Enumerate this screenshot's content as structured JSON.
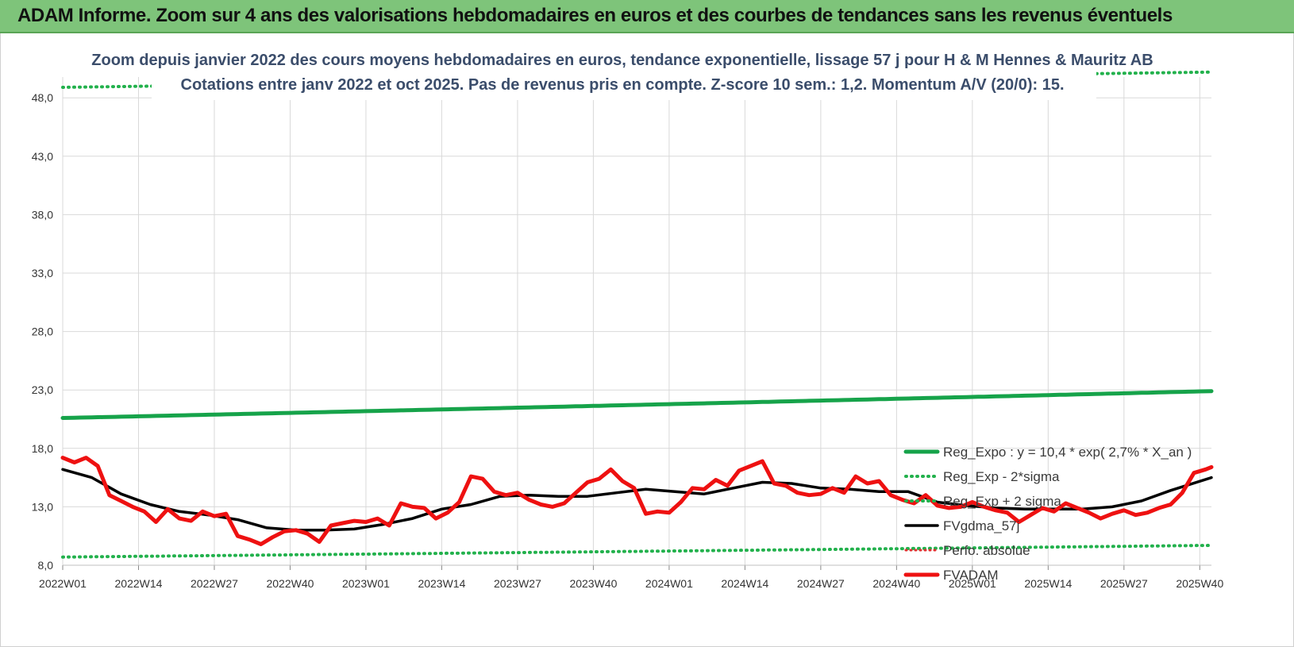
{
  "banner": {
    "title": "ADAM Informe. Zoom sur 4 ans des valorisations hebdomadaires en euros et des courbes de tendances sans les revenus éventuels"
  },
  "chart_data": {
    "type": "line",
    "title": "Zoom depuis janvier 2022 des cours moyens hebdomadaires en euros, tendance exponentielle, lissage 57 j pour H & M Hennes & Mauritz AB",
    "subtitle": "Cotations entre janv 2022 et oct 2025. Pas de revenus pris en compte. Z-score 10 sem.: 1,2. Momentum A/V (20/0): 15.",
    "xlabel": "",
    "ylabel": "",
    "ylim": [
      8.0,
      50.2
    ],
    "y_ticks": [
      "8,0",
      "13,0",
      "18,0",
      "23,0",
      "28,0",
      "33,0",
      "38,0",
      "43,0",
      "48,0"
    ],
    "x_ticks": [
      "2022W01",
      "2022W14",
      "2022W27",
      "2022W40",
      "2023W01",
      "2023W14",
      "2023W27",
      "2023W40",
      "2024W01",
      "2024W14",
      "2024W27",
      "2024W40",
      "2025W01",
      "2025W14",
      "2025W27",
      "2025W40"
    ],
    "weeks_count": 198,
    "colors": {
      "reg_expo": "#16a34a",
      "reg_band": "#22b14c",
      "fvgdma": "#000000",
      "perfo": "#e03030",
      "fvadam": "#ee1111",
      "grid": "#d9d9d9"
    },
    "series": [
      {
        "name": "Reg_Expo : y = 10,4 * exp( 2,7% * X_an )",
        "style": "solid-thick",
        "week_index": [
          0,
          197
        ],
        "values": [
          20.6,
          22.9
        ]
      },
      {
        "name": "Reg_Exp - 2*sigma",
        "style": "dotted",
        "week_index": [
          0,
          197
        ],
        "values": [
          8.7,
          9.7
        ]
      },
      {
        "name": "Reg_Exp + 2 sigma",
        "style": "dotted",
        "week_index": [
          0,
          197
        ],
        "values": [
          48.9,
          50.2
        ]
      },
      {
        "name": "FVgdma_57j",
        "style": "solid",
        "week_index": [
          0,
          5,
          10,
          15,
          20,
          25,
          30,
          35,
          40,
          45,
          50,
          55,
          60,
          65,
          70,
          75,
          80,
          85,
          90,
          95,
          100,
          105,
          110,
          115,
          120,
          125,
          130,
          135,
          140,
          145,
          150,
          155,
          160,
          165,
          170,
          175,
          180,
          185,
          190,
          197
        ],
        "values": [
          16.2,
          15.5,
          14.1,
          13.2,
          12.6,
          12.3,
          11.9,
          11.2,
          11.0,
          11.0,
          11.1,
          11.5,
          12.0,
          12.8,
          13.2,
          13.9,
          14.0,
          13.9,
          13.9,
          14.2,
          14.5,
          14.3,
          14.1,
          14.6,
          15.1,
          15.0,
          14.6,
          14.5,
          14.3,
          14.3,
          13.4,
          13.1,
          12.9,
          12.8,
          12.8,
          12.8,
          13.0,
          13.5,
          14.4,
          15.5
        ]
      },
      {
        "name": "Perfo. absolue",
        "style": "dotted",
        "week_index": [],
        "values": []
      },
      {
        "name": "FVADAM",
        "style": "solid-thick",
        "week_index": [
          0,
          2,
          4,
          6,
          8,
          10,
          12,
          14,
          16,
          18,
          20,
          22,
          24,
          26,
          28,
          30,
          32,
          34,
          36,
          38,
          40,
          42,
          44,
          46,
          48,
          50,
          52,
          54,
          56,
          58,
          60,
          62,
          64,
          66,
          68,
          70,
          72,
          74,
          76,
          78,
          80,
          82,
          84,
          86,
          88,
          90,
          92,
          94,
          96,
          98,
          100,
          102,
          104,
          106,
          108,
          110,
          112,
          114,
          116,
          118,
          120,
          122,
          124,
          126,
          128,
          130,
          132,
          134,
          136,
          138,
          140,
          142,
          144,
          146,
          148,
          150,
          152,
          154,
          156,
          158,
          160,
          162,
          164,
          166,
          168,
          170,
          172,
          174,
          176,
          178,
          180,
          182,
          184,
          186,
          188,
          190,
          192,
          194,
          196,
          197
        ],
        "values": [
          17.2,
          16.8,
          17.2,
          16.5,
          14.0,
          13.5,
          13.0,
          12.6,
          11.7,
          12.8,
          12.0,
          11.8,
          12.6,
          12.2,
          12.4,
          10.5,
          10.2,
          9.8,
          10.4,
          10.9,
          11.0,
          10.7,
          10.0,
          11.4,
          11.6,
          11.8,
          11.7,
          12.0,
          11.4,
          13.3,
          13.0,
          12.9,
          12.0,
          12.5,
          13.4,
          15.6,
          15.4,
          14.3,
          14.0,
          14.2,
          13.6,
          13.2,
          13.0,
          13.3,
          14.2,
          15.1,
          15.4,
          16.2,
          15.2,
          14.6,
          12.4,
          12.6,
          12.5,
          13.4,
          14.6,
          14.5,
          15.3,
          14.8,
          16.1,
          16.5,
          16.9,
          15.0,
          14.8,
          14.2,
          14.0,
          14.1,
          14.6,
          14.2,
          15.6,
          15.0,
          15.2,
          14.0,
          13.6,
          13.3,
          14.0,
          13.1,
          12.9,
          13.0,
          13.4,
          13.0,
          12.7,
          12.5,
          11.7,
          12.3,
          12.9,
          12.6,
          13.3,
          12.9,
          12.5,
          12.0,
          12.4,
          12.7,
          12.3,
          12.5,
          12.9,
          13.2,
          14.2,
          15.9,
          16.2,
          16.4
        ]
      }
    ],
    "legend_position": "right-middle"
  }
}
